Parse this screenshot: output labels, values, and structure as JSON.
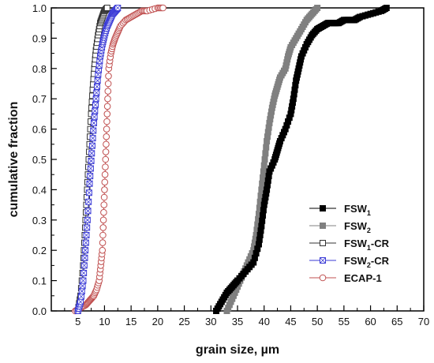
{
  "chart_data": {
    "type": "line",
    "xlabel": "grain size, µm",
    "ylabel": "cumulative fraction",
    "xlim": [
      0,
      70
    ],
    "ylim": [
      0.0,
      1.0
    ],
    "x_ticks": [
      5,
      10,
      15,
      20,
      25,
      30,
      35,
      40,
      45,
      50,
      55,
      60,
      65,
      70
    ],
    "y_ticks": [
      "0.0",
      "0.1",
      "0.2",
      "0.3",
      "0.4",
      "0.5",
      "0.6",
      "0.7",
      "0.8",
      "0.9",
      "1.0"
    ],
    "grid": false,
    "legend_position": "center-right",
    "series": [
      {
        "name": "FSW1",
        "legend_main": "FSW",
        "legend_sub": "1",
        "legend_suffix": "",
        "color": "#000000",
        "marker": "square-filled",
        "points": [
          [
            31.0,
            0.0
          ],
          [
            32.0,
            0.03
          ],
          [
            33.0,
            0.06
          ],
          [
            34.0,
            0.08
          ],
          [
            35.0,
            0.1
          ],
          [
            36.5,
            0.13
          ],
          [
            38.0,
            0.16
          ],
          [
            39.0,
            0.22
          ],
          [
            39.5,
            0.28
          ],
          [
            40.0,
            0.35
          ],
          [
            40.5,
            0.4
          ],
          [
            41.0,
            0.46
          ],
          [
            42.0,
            0.5
          ],
          [
            42.5,
            0.53
          ],
          [
            43.0,
            0.56
          ],
          [
            44.0,
            0.6
          ],
          [
            45.0,
            0.65
          ],
          [
            45.5,
            0.7
          ],
          [
            46.0,
            0.76
          ],
          [
            46.5,
            0.8
          ],
          [
            47.0,
            0.84
          ],
          [
            48.0,
            0.88
          ],
          [
            49.0,
            0.91
          ],
          [
            50.0,
            0.93
          ],
          [
            51.0,
            0.94
          ],
          [
            52.0,
            0.95
          ],
          [
            53.0,
            0.95
          ],
          [
            54.0,
            0.95
          ],
          [
            55.0,
            0.96
          ],
          [
            56.0,
            0.96
          ],
          [
            57.0,
            0.96
          ],
          [
            58.0,
            0.97
          ],
          [
            60.0,
            0.98
          ],
          [
            62.0,
            0.99
          ],
          [
            63.0,
            1.0
          ]
        ]
      },
      {
        "name": "FSW2",
        "legend_main": "FSW",
        "legend_sub": "2",
        "legend_suffix": "",
        "color": "#808080",
        "marker": "square-filled",
        "points": [
          [
            33.0,
            0.0
          ],
          [
            34.0,
            0.04
          ],
          [
            35.0,
            0.08
          ],
          [
            36.0,
            0.12
          ],
          [
            37.0,
            0.16
          ],
          [
            38.0,
            0.2
          ],
          [
            38.5,
            0.25
          ],
          [
            39.0,
            0.32
          ],
          [
            39.5,
            0.4
          ],
          [
            40.0,
            0.48
          ],
          [
            40.5,
            0.56
          ],
          [
            41.0,
            0.62
          ],
          [
            41.5,
            0.67
          ],
          [
            42.0,
            0.71
          ],
          [
            42.5,
            0.74
          ],
          [
            43.0,
            0.77
          ],
          [
            44.0,
            0.8
          ],
          [
            44.5,
            0.84
          ],
          [
            45.0,
            0.87
          ],
          [
            46.0,
            0.9
          ],
          [
            47.0,
            0.93
          ],
          [
            48.0,
            0.96
          ],
          [
            49.0,
            0.98
          ],
          [
            50.0,
            1.0
          ]
        ]
      },
      {
        "name": "FSW1-CR",
        "legend_main": "FSW",
        "legend_sub": "1",
        "legend_suffix": "-CR",
        "color": "#333333",
        "marker": "square-open",
        "points": [
          [
            5.0,
            0.0
          ],
          [
            5.5,
            0.05
          ],
          [
            6.0,
            0.15
          ],
          [
            6.3,
            0.25
          ],
          [
            6.6,
            0.35
          ],
          [
            6.9,
            0.45
          ],
          [
            7.2,
            0.55
          ],
          [
            7.5,
            0.65
          ],
          [
            7.8,
            0.73
          ],
          [
            8.1,
            0.8
          ],
          [
            8.4,
            0.86
          ],
          [
            8.8,
            0.91
          ],
          [
            9.2,
            0.95
          ],
          [
            9.6,
            0.97
          ],
          [
            10.0,
            0.99
          ],
          [
            10.5,
            1.0
          ]
        ]
      },
      {
        "name": "FSW2-CR",
        "legend_main": "FSW",
        "legend_sub": "2",
        "legend_suffix": "-CR",
        "color": "#3a3ad6",
        "marker": "square-x",
        "points": [
          [
            5.0,
            0.0
          ],
          [
            5.5,
            0.03
          ],
          [
            6.0,
            0.1
          ],
          [
            6.4,
            0.2
          ],
          [
            6.8,
            0.3
          ],
          [
            7.2,
            0.42
          ],
          [
            7.6,
            0.52
          ],
          [
            8.0,
            0.62
          ],
          [
            8.4,
            0.7
          ],
          [
            8.8,
            0.78
          ],
          [
            9.2,
            0.84
          ],
          [
            9.6,
            0.88
          ],
          [
            10.0,
            0.91
          ],
          [
            10.5,
            0.94
          ],
          [
            11.0,
            0.96
          ],
          [
            11.5,
            0.98
          ],
          [
            12.0,
            0.99
          ],
          [
            12.5,
            1.0
          ]
        ]
      },
      {
        "name": "ECAP-1",
        "legend_main": "ECAP-1",
        "legend_sub": "",
        "legend_suffix": "",
        "color": "#c05050",
        "marker": "circle-open",
        "points": [
          [
            4.5,
            0.0
          ],
          [
            5.5,
            0.01
          ],
          [
            6.5,
            0.02
          ],
          [
            7.0,
            0.03
          ],
          [
            7.5,
            0.04
          ],
          [
            8.0,
            0.05
          ],
          [
            8.5,
            0.07
          ],
          [
            9.0,
            0.1
          ],
          [
            9.3,
            0.15
          ],
          [
            9.6,
            0.2
          ],
          [
            9.8,
            0.3
          ],
          [
            10.0,
            0.4
          ],
          [
            10.2,
            0.5
          ],
          [
            10.4,
            0.6
          ],
          [
            10.6,
            0.7
          ],
          [
            10.8,
            0.8
          ],
          [
            11.2,
            0.85
          ],
          [
            11.6,
            0.88
          ],
          [
            12.0,
            0.9
          ],
          [
            12.5,
            0.92
          ],
          [
            13.0,
            0.94
          ],
          [
            14.0,
            0.96
          ],
          [
            15.0,
            0.97
          ],
          [
            16.0,
            0.98
          ],
          [
            17.0,
            0.99
          ],
          [
            18.0,
            0.99
          ],
          [
            20.0,
            1.0
          ],
          [
            21.0,
            1.0
          ]
        ]
      }
    ]
  }
}
